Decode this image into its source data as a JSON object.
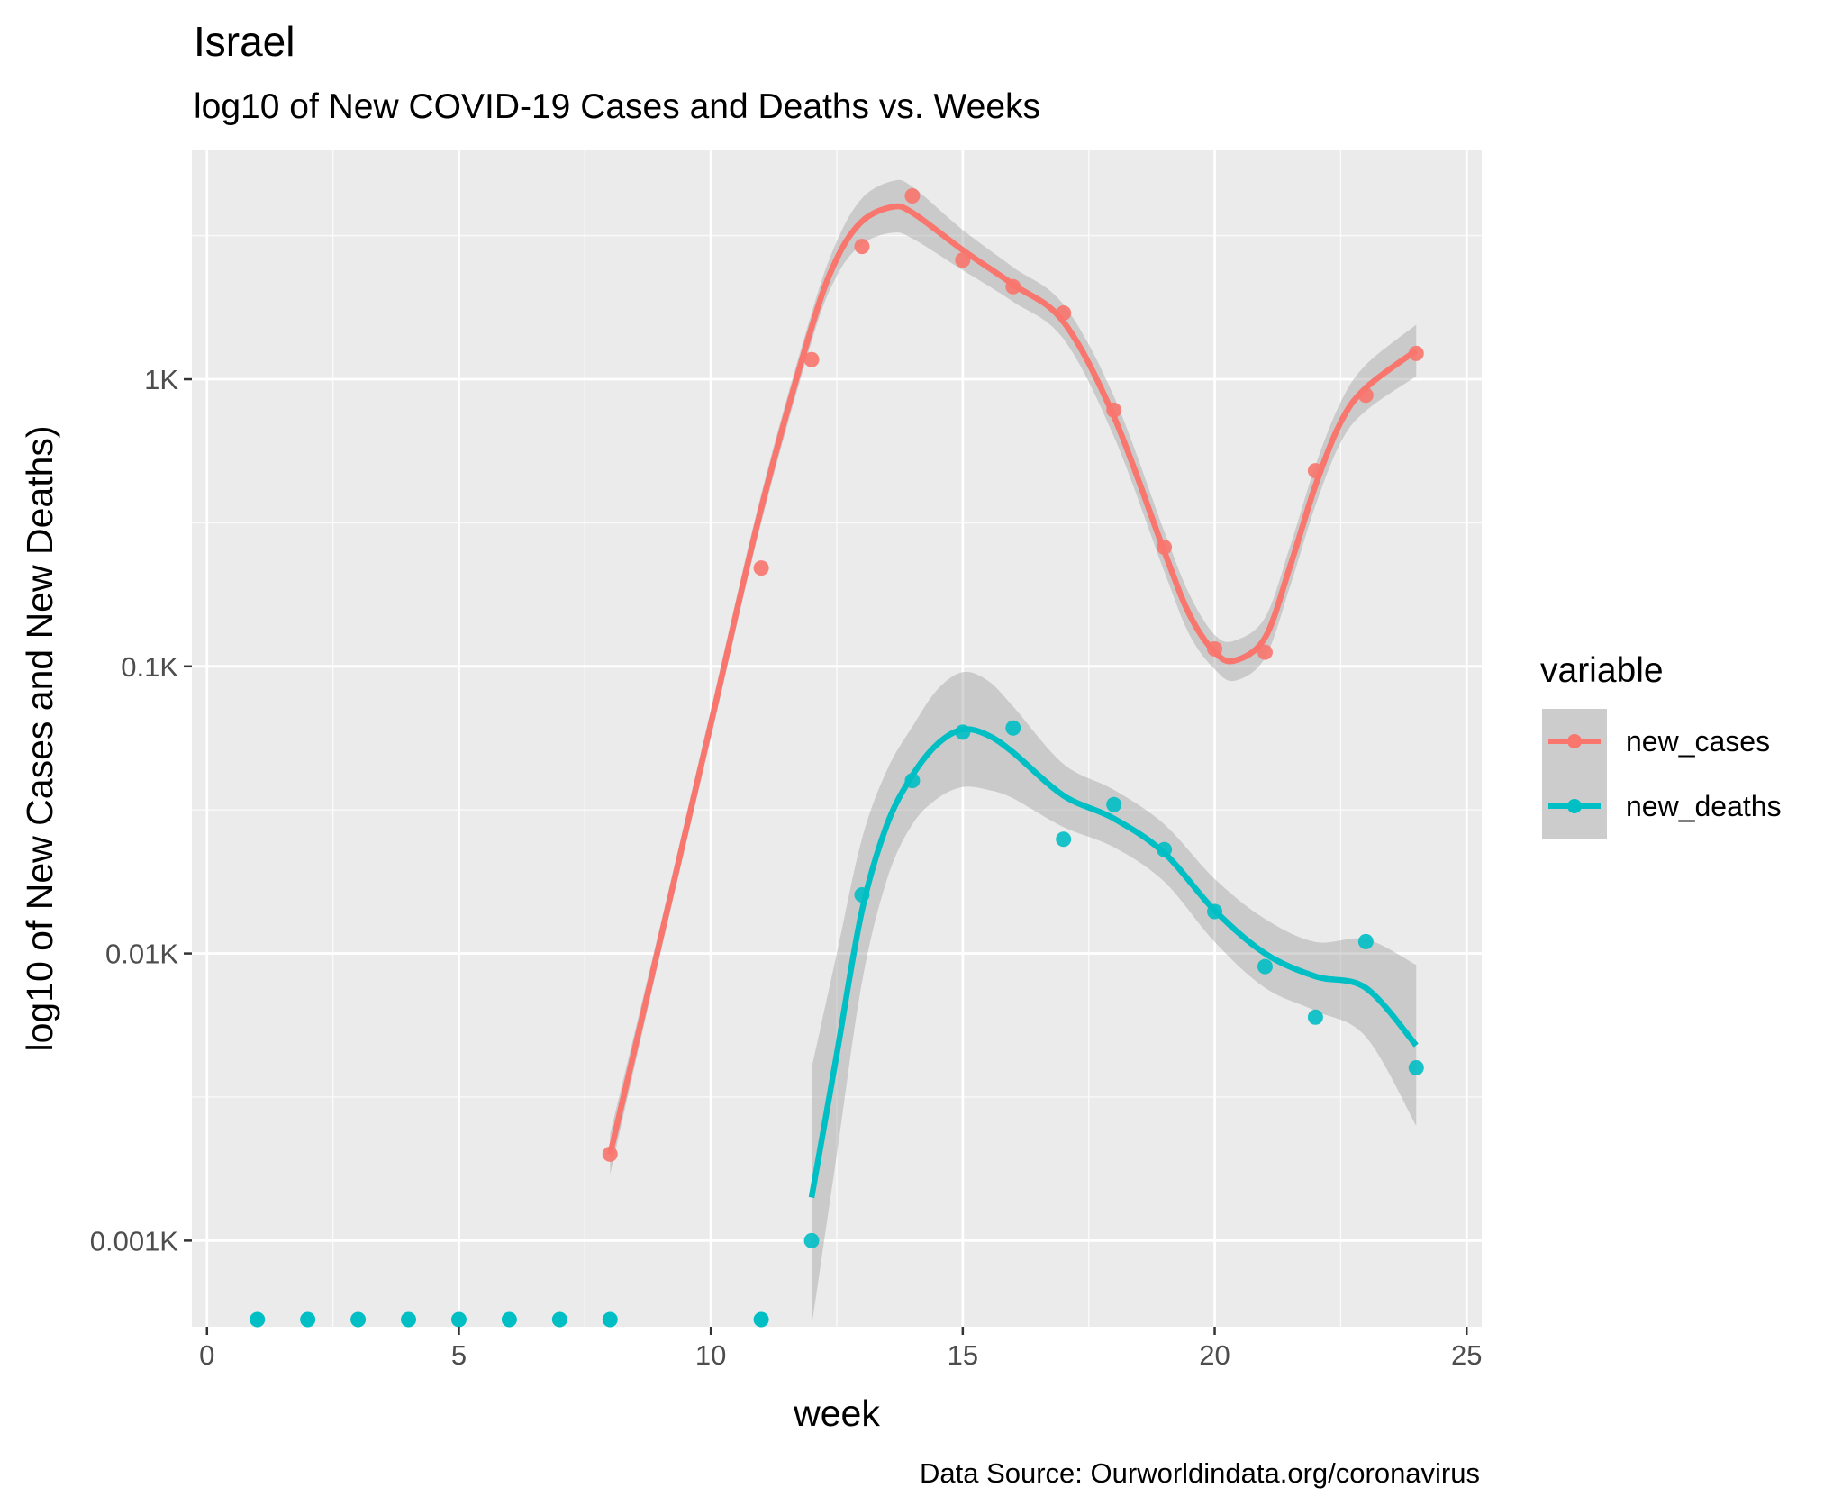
{
  "chart_data": {
    "type": "scatter",
    "title": "Israel",
    "subtitle": "log10 of New COVID-19 Cases and Deaths vs. Weeks",
    "xlabel": "week",
    "ylabel": "log10 of New Cases and New Deaths)",
    "caption": "Data Source: Ourworldindata.org/coronavirus",
    "y_scale": "log10",
    "xlim": [
      -0.3,
      25.3
    ],
    "x_ticks": [
      0,
      5,
      10,
      15,
      20,
      25
    ],
    "x_tick_labels": [
      "0",
      "5",
      "10",
      "15",
      "20",
      "25"
    ],
    "ylim_log10": [
      -3.3,
      0.8
    ],
    "y_ticks_log10": [
      -3,
      -2,
      -1,
      0
    ],
    "y_tick_labels": [
      "0.001K",
      "0.01K",
      "0.1K",
      "1K"
    ],
    "grid": true,
    "legend": {
      "title": "variable",
      "position": "right"
    },
    "series": [
      {
        "name": "new_cases",
        "color": "#F8766D",
        "points": [
          {
            "x": 8,
            "y": 0.002
          },
          {
            "x": 11,
            "y": 0.22
          },
          {
            "x": 12,
            "y": 1.17
          },
          {
            "x": 13,
            "y": 2.9
          },
          {
            "x": 14,
            "y": 4.35
          },
          {
            "x": 15,
            "y": 2.6
          },
          {
            "x": 16,
            "y": 2.1
          },
          {
            "x": 17,
            "y": 1.7
          },
          {
            "x": 18,
            "y": 0.78
          },
          {
            "x": 19,
            "y": 0.26
          },
          {
            "x": 20,
            "y": 0.115
          },
          {
            "x": 21,
            "y": 0.112
          },
          {
            "x": 22,
            "y": 0.48
          },
          {
            "x": 23,
            "y": 0.88
          },
          {
            "x": 24,
            "y": 1.23
          }
        ],
        "smooth": [
          {
            "x": 8,
            "y": -2.7
          },
          {
            "x": 9,
            "y": -1.95
          },
          {
            "x": 10,
            "y": -1.2
          },
          {
            "x": 11,
            "y": -0.45
          },
          {
            "x": 12,
            "y": 0.18
          },
          {
            "x": 12.5,
            "y": 0.42
          },
          {
            "x": 13,
            "y": 0.55
          },
          {
            "x": 13.6,
            "y": 0.6
          },
          {
            "x": 14,
            "y": 0.58
          },
          {
            "x": 15,
            "y": 0.45
          },
          {
            "x": 16,
            "y": 0.33
          },
          {
            "x": 17,
            "y": 0.2
          },
          {
            "x": 18,
            "y": -0.13
          },
          {
            "x": 19,
            "y": -0.6
          },
          {
            "x": 19.5,
            "y": -0.82
          },
          {
            "x": 20,
            "y": -0.95
          },
          {
            "x": 20.4,
            "y": -0.98
          },
          {
            "x": 21,
            "y": -0.9
          },
          {
            "x": 21.5,
            "y": -0.65
          },
          {
            "x": 22,
            "y": -0.37
          },
          {
            "x": 22.5,
            "y": -0.15
          },
          {
            "x": 23,
            "y": -0.03
          },
          {
            "x": 24,
            "y": 0.1
          }
        ],
        "band_halfwidth": [
          0.07,
          0.05,
          0.05,
          0.05,
          0.05,
          0.06,
          0.08,
          0.09,
          0.09,
          0.07,
          0.06,
          0.06,
          0.07,
          0.07,
          0.07,
          0.06,
          0.07,
          0.07,
          0.07,
          0.07,
          0.07,
          0.08,
          0.09
        ]
      },
      {
        "name": "new_deaths",
        "color": "#00BFC4",
        "points": [
          {
            "x": 12,
            "y": 0.001
          },
          {
            "x": 13,
            "y": 0.016
          },
          {
            "x": 14,
            "y": 0.04
          },
          {
            "x": 15,
            "y": 0.059
          },
          {
            "x": 16,
            "y": 0.061
          },
          {
            "x": 17,
            "y": 0.025
          },
          {
            "x": 18,
            "y": 0.033
          },
          {
            "x": 19,
            "y": 0.023
          },
          {
            "x": 20,
            "y": 0.014
          },
          {
            "x": 21,
            "y": 0.009
          },
          {
            "x": 22,
            "y": 0.006
          },
          {
            "x": 23,
            "y": 0.011
          },
          {
            "x": 24,
            "y": 0.004
          }
        ],
        "zero_weeks": [
          1,
          2,
          3,
          4,
          5,
          6,
          7,
          8,
          11
        ],
        "smooth": [
          {
            "x": 12,
            "y": -2.85
          },
          {
            "x": 12.5,
            "y": -2.35
          },
          {
            "x": 13,
            "y": -1.85
          },
          {
            "x": 13.5,
            "y": -1.55
          },
          {
            "x": 14,
            "y": -1.38
          },
          {
            "x": 14.5,
            "y": -1.27
          },
          {
            "x": 15,
            "y": -1.22
          },
          {
            "x": 15.5,
            "y": -1.24
          },
          {
            "x": 16,
            "y": -1.3
          },
          {
            "x": 17,
            "y": -1.45
          },
          {
            "x": 18,
            "y": -1.53
          },
          {
            "x": 19,
            "y": -1.65
          },
          {
            "x": 20,
            "y": -1.85
          },
          {
            "x": 21,
            "y": -2.0
          },
          {
            "x": 22,
            "y": -2.08
          },
          {
            "x": 23,
            "y": -2.12
          },
          {
            "x": 24,
            "y": -2.32
          }
        ],
        "band_halfwidth": [
          0.45,
          0.35,
          0.25,
          0.19,
          0.17,
          0.19,
          0.2,
          0.19,
          0.16,
          0.11,
          0.1,
          0.1,
          0.11,
          0.12,
          0.12,
          0.17,
          0.28
        ]
      }
    ]
  }
}
